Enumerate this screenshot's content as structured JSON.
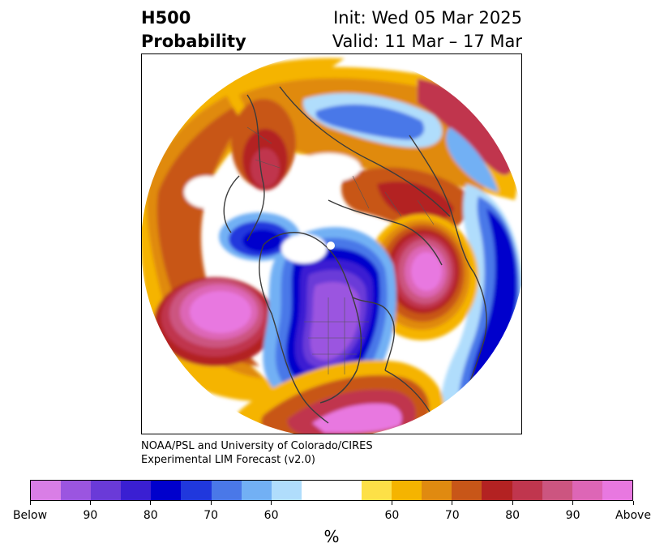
{
  "title": {
    "left_line1": "H500",
    "left_line2": "Probability",
    "right_line1": "Init: Wed 05 Mar 2025",
    "right_line2": "Valid: 11 Mar – 17 Mar"
  },
  "credit": {
    "line1": "NOAA/PSL and University of Colorado/CIRES",
    "line2": "Experimental LIM Forecast (v2.0)"
  },
  "colorbar": {
    "unit_label": "%",
    "colors": [
      "#d97ee6",
      "#9b55e0",
      "#6a3ad8",
      "#3a1fd2",
      "#0000cc",
      "#2038dd",
      "#4a78e8",
      "#72b0f4",
      "#b0ddfc",
      "#ffffff",
      "#ffffff",
      "#fde047",
      "#f5b400",
      "#e08a10",
      "#c85618",
      "#b32222",
      "#c0364e",
      "#cc5580",
      "#dd66b6",
      "#e878e0"
    ],
    "ticks": [
      "Below",
      "90",
      "80",
      "70",
      "60",
      "60",
      "70",
      "80",
      "90",
      "Above"
    ]
  },
  "map": {
    "projection": "north-polar-stereographic",
    "palette": {
      "above_strong": "#e878e0",
      "above_mid": "#c0364e",
      "above_weak": "#f5b400",
      "neutral": "#ffffff",
      "below_weak": "#72b0f4",
      "below_mid": "#0000cc",
      "below_strong": "#8a48e0",
      "coast": "#3c3c3c"
    }
  }
}
